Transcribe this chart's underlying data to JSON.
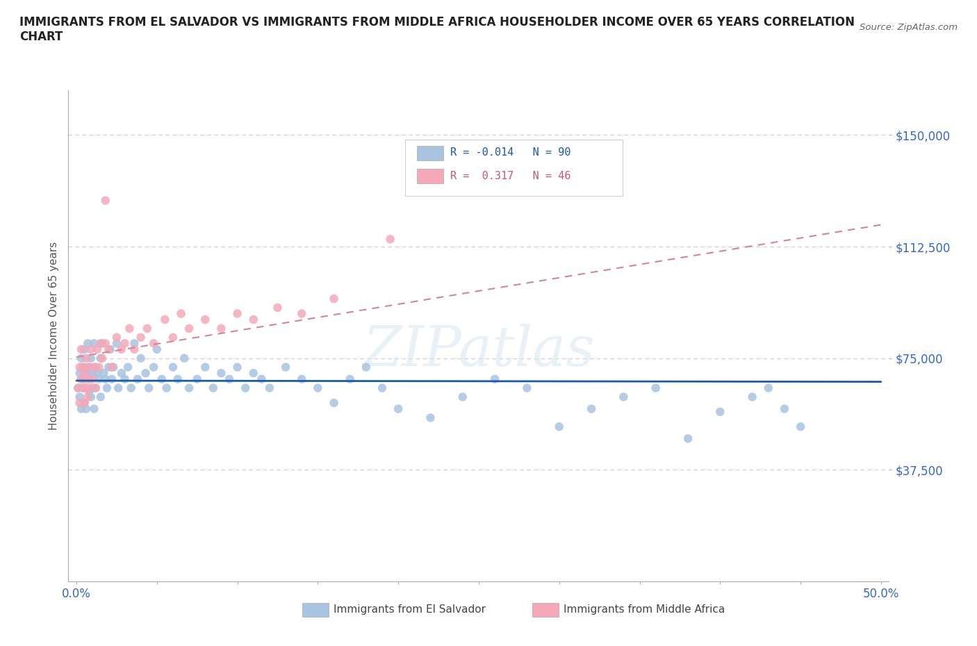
{
  "title": "IMMIGRANTS FROM EL SALVADOR VS IMMIGRANTS FROM MIDDLE AFRICA HOUSEHOLDER INCOME OVER 65 YEARS CORRELATION\nCHART",
  "source": "Source: ZipAtlas.com",
  "ylabel": "Householder Income Over 65 years",
  "xlim": [
    -0.005,
    0.505
  ],
  "ylim": [
    0,
    165000
  ],
  "xticks": [
    0.0,
    0.05,
    0.1,
    0.15,
    0.2,
    0.25,
    0.3,
    0.35,
    0.4,
    0.45,
    0.5
  ],
  "xticklabels": [
    "0.0%",
    "",
    "",
    "",
    "",
    "",
    "",
    "",
    "",
    "",
    "50.0%"
  ],
  "ytick_positions": [
    37500,
    75000,
    112500,
    150000
  ],
  "ytick_labels": [
    "$37,500",
    "$75,000",
    "$112,500",
    "$150,000"
  ],
  "hlines": [
    37500,
    75000,
    112500,
    150000
  ],
  "el_salvador_R": -0.014,
  "el_salvador_N": 90,
  "middle_africa_R": 0.317,
  "middle_africa_N": 46,
  "el_salvador_color": "#a8c4e0",
  "middle_africa_color": "#f4a8b8",
  "el_salvador_line_color": "#1a5aab",
  "middle_africa_line_color": "#d4849a",
  "background_color": "#ffffff",
  "el_salvador_x": [
    0.001,
    0.002,
    0.002,
    0.003,
    0.003,
    0.003,
    0.004,
    0.004,
    0.005,
    0.005,
    0.005,
    0.006,
    0.006,
    0.006,
    0.007,
    0.007,
    0.008,
    0.008,
    0.008,
    0.009,
    0.009,
    0.01,
    0.01,
    0.011,
    0.011,
    0.012,
    0.012,
    0.013,
    0.014,
    0.015,
    0.015,
    0.016,
    0.017,
    0.018,
    0.019,
    0.02,
    0.021,
    0.022,
    0.023,
    0.025,
    0.026,
    0.028,
    0.03,
    0.032,
    0.034,
    0.036,
    0.038,
    0.04,
    0.043,
    0.045,
    0.048,
    0.05,
    0.053,
    0.056,
    0.06,
    0.063,
    0.067,
    0.07,
    0.075,
    0.08,
    0.085,
    0.09,
    0.095,
    0.1,
    0.105,
    0.11,
    0.115,
    0.12,
    0.13,
    0.14,
    0.15,
    0.16,
    0.17,
    0.18,
    0.19,
    0.2,
    0.22,
    0.24,
    0.26,
    0.28,
    0.3,
    0.32,
    0.34,
    0.36,
    0.38,
    0.4,
    0.42,
    0.43,
    0.44,
    0.45
  ],
  "el_salvador_y": [
    65000,
    62000,
    70000,
    58000,
    68000,
    75000,
    72000,
    65000,
    60000,
    68000,
    78000,
    65000,
    72000,
    58000,
    70000,
    80000,
    64000,
    72000,
    68000,
    75000,
    62000,
    70000,
    65000,
    80000,
    58000,
    72000,
    65000,
    70000,
    68000,
    75000,
    62000,
    80000,
    70000,
    68000,
    65000,
    72000,
    78000,
    68000,
    72000,
    80000,
    65000,
    70000,
    68000,
    72000,
    65000,
    80000,
    68000,
    75000,
    70000,
    65000,
    72000,
    78000,
    68000,
    65000,
    72000,
    68000,
    75000,
    65000,
    68000,
    72000,
    65000,
    70000,
    68000,
    72000,
    65000,
    70000,
    68000,
    65000,
    72000,
    68000,
    65000,
    60000,
    68000,
    72000,
    65000,
    58000,
    55000,
    62000,
    68000,
    65000,
    52000,
    58000,
    62000,
    65000,
    48000,
    57000,
    62000,
    65000,
    58000,
    52000
  ],
  "middle_africa_x": [
    0.001,
    0.002,
    0.002,
    0.003,
    0.003,
    0.004,
    0.004,
    0.005,
    0.005,
    0.006,
    0.006,
    0.007,
    0.007,
    0.008,
    0.008,
    0.009,
    0.01,
    0.011,
    0.012,
    0.013,
    0.014,
    0.015,
    0.016,
    0.018,
    0.02,
    0.022,
    0.025,
    0.028,
    0.03,
    0.033,
    0.036,
    0.04,
    0.044,
    0.048,
    0.055,
    0.06,
    0.065,
    0.07,
    0.08,
    0.09,
    0.1,
    0.11,
    0.125,
    0.14,
    0.16,
    0.195
  ],
  "middle_africa_y": [
    65000,
    60000,
    72000,
    68000,
    78000,
    65000,
    72000,
    60000,
    70000,
    65000,
    75000,
    68000,
    62000,
    72000,
    65000,
    78000,
    68000,
    72000,
    65000,
    78000,
    72000,
    80000,
    75000,
    80000,
    78000,
    72000,
    82000,
    78000,
    80000,
    85000,
    78000,
    82000,
    85000,
    80000,
    88000,
    82000,
    90000,
    85000,
    88000,
    85000,
    90000,
    88000,
    92000,
    90000,
    95000,
    115000
  ],
  "middle_africa_outlier_x": [
    0.018
  ],
  "middle_africa_outlier_y": [
    128000
  ]
}
